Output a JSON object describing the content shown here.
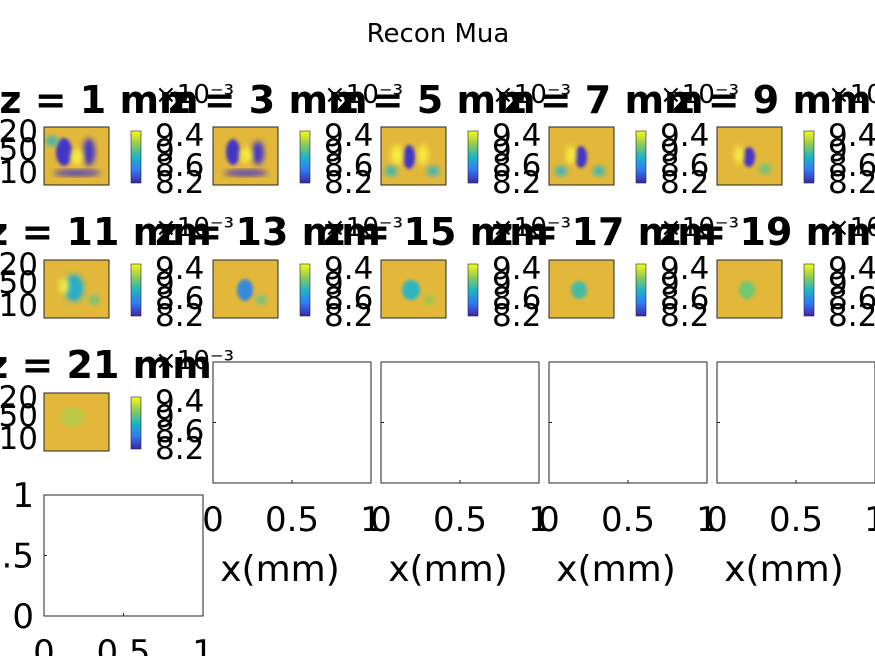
{
  "figure": {
    "title": "Recon Mua"
  },
  "colors": {
    "frame": "#262626",
    "background": "#ffffff",
    "map_base": "#e3b83a"
  },
  "chart_data": {
    "type": "heatmap",
    "title": "Recon Mua",
    "colormap": "parula",
    "colorbar": {
      "ticks": [
        "9.4",
        "9",
        "8.6",
        "8.2"
      ],
      "exponent_label": "×10⁻³",
      "range": [
        0.0082,
        0.0096
      ]
    },
    "slice_depths": [
      "1",
      "3",
      "5",
      "7",
      "9",
      "11",
      "13",
      "15",
      "17",
      "19",
      "21"
    ],
    "slice_titles": [
      "z = 1 mm",
      "z = 3 mm",
      "z = 5 mm",
      "z = 7 mm",
      "z = 9 mm",
      "z = 11 mm",
      "z = 13 mm",
      "z = 15 mm",
      "z = 17 mm",
      "z = 19 mm",
      "z = 21 mm"
    ],
    "y_tick_labels_visible": [
      "20",
      "50",
      "10"
    ],
    "empty_axes": {
      "xlabel": "x(mm)",
      "xticks": [
        "0",
        "0.5",
        "1"
      ],
      "yticks": [
        "1",
        ".5",
        "0"
      ],
      "xlim": [
        0,
        1
      ],
      "ylim": [
        0,
        1
      ]
    }
  }
}
